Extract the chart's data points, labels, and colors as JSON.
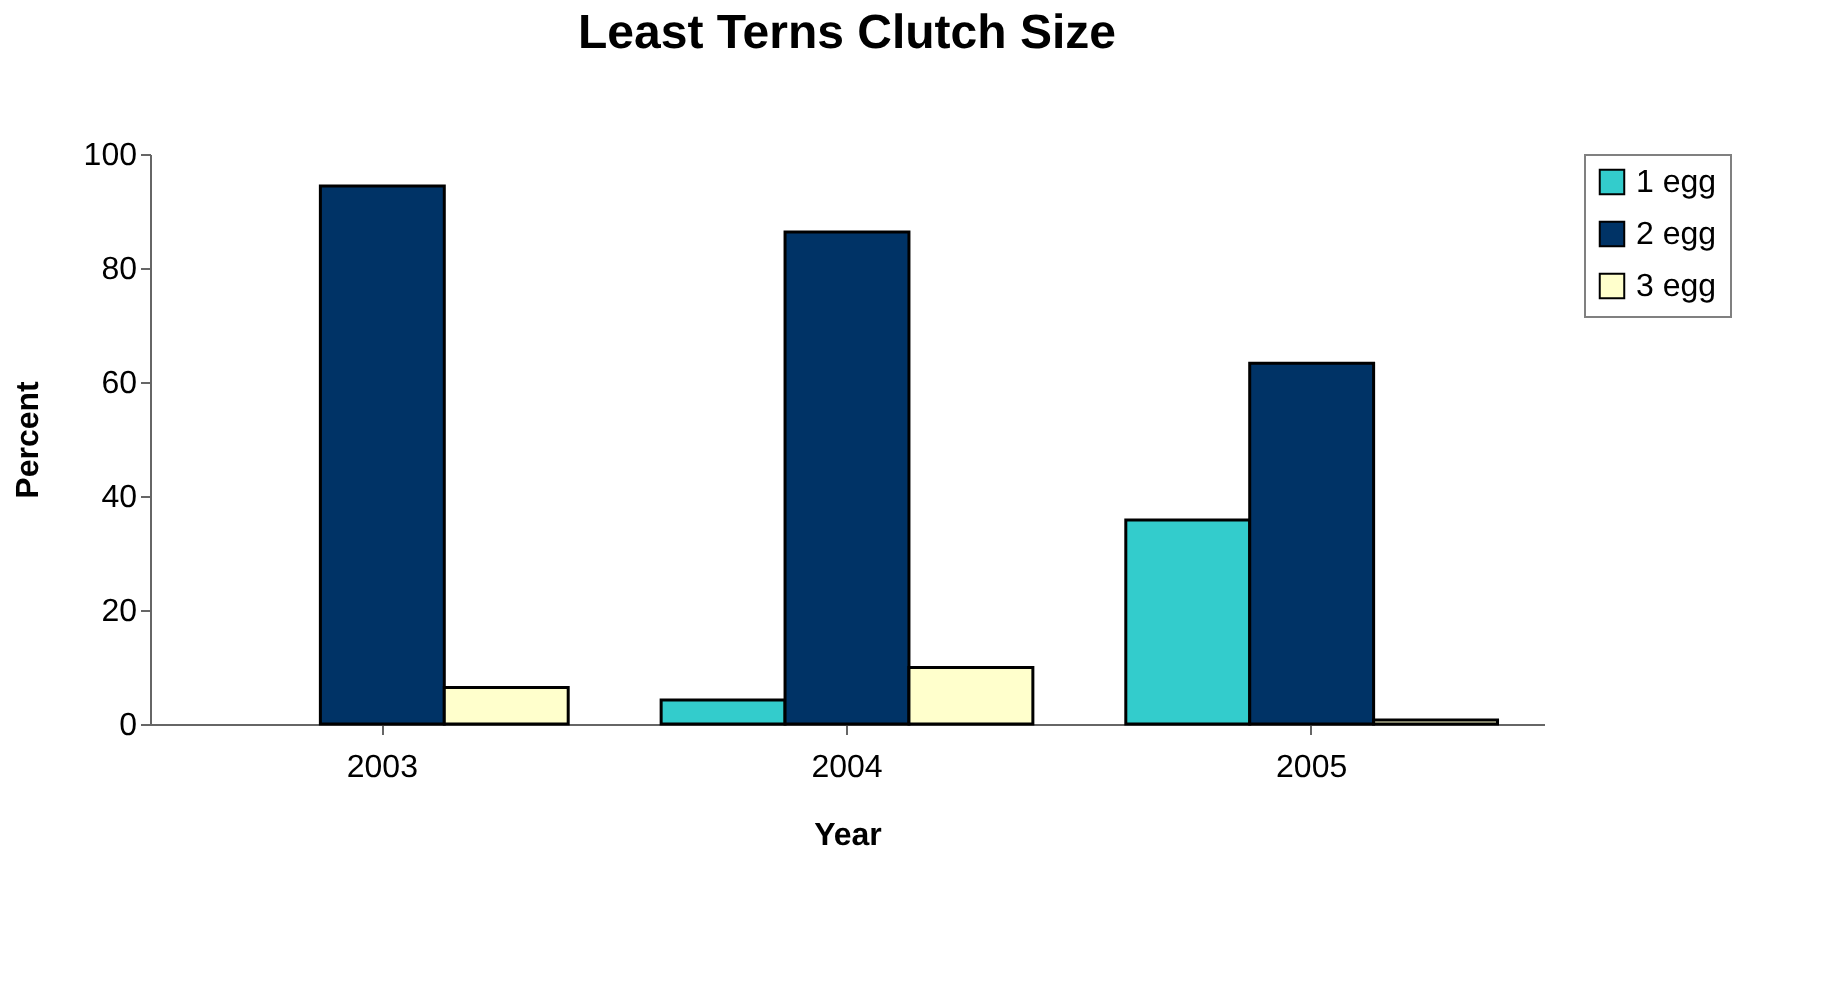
{
  "chart_data": {
    "type": "bar",
    "title": "Least Terns Clutch Size",
    "xlabel": "Year",
    "ylabel": "Percent",
    "categories": [
      "2003",
      "2004",
      "2005"
    ],
    "series": [
      {
        "name": "1 egg",
        "color": "#33cccc",
        "values": [
          0,
          4.2,
          35.8
        ]
      },
      {
        "name": "2 egg",
        "color": "#003366",
        "values": [
          94.4,
          86.3,
          63.3
        ]
      },
      {
        "name": "3 egg",
        "color": "#ffffcc",
        "values": [
          6.4,
          9.9,
          0.7
        ]
      }
    ],
    "ylim": [
      0,
      100
    ],
    "yticks": [
      0,
      20,
      40,
      60,
      80,
      100
    ],
    "grid": false,
    "legend": "right"
  }
}
